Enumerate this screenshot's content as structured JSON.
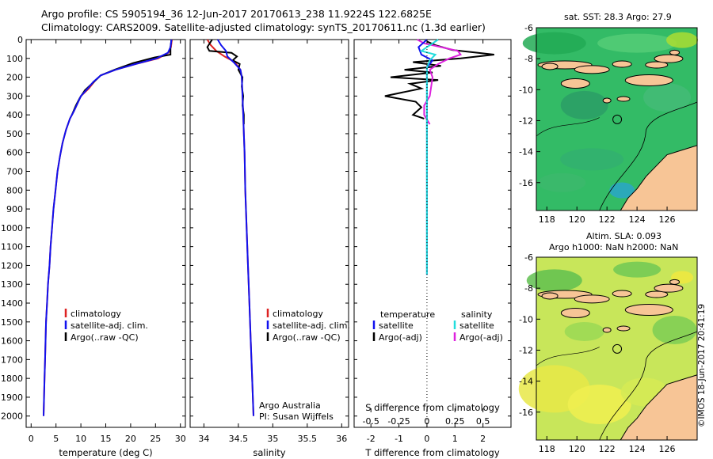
{
  "header": {
    "line1": "Argo profile: CS 5905194_36 12-Jun-2017 20170613_238 11.9224S 122.6825E",
    "line2": "Climatology: CARS2009. Satellite-adjusted climatology: synTS_20170611.nc (1.3d earlier)"
  },
  "chart_data": [
    {
      "type": "line",
      "xlabel": "temperature (deg C)",
      "xlim": [
        -1,
        31
      ],
      "ylim": [
        2060,
        0
      ],
      "xticks": [
        "0",
        "5",
        "10",
        "15",
        "20",
        "25",
        "30"
      ],
      "yticks": [
        "0",
        "100",
        "200",
        "300",
        "400",
        "500",
        "600",
        "700",
        "800",
        "900",
        "1000",
        "1100",
        "1200",
        "1300",
        "1400",
        "1500",
        "1600",
        "1700",
        "1800",
        "1900",
        "2000"
      ],
      "legend": [
        "climatology",
        "satellite-adj. clim.",
        "Argo(..raw -QC)"
      ],
      "series": [
        {
          "name": "climatology",
          "color": "#dd2222",
          "values": [
            [
              28.3,
              0
            ],
            [
              28.1,
              40
            ],
            [
              27.6,
              70
            ],
            [
              25.5,
              100
            ],
            [
              21,
              130
            ],
            [
              17,
              160
            ],
            [
              14,
              190
            ],
            [
              12.8,
              220
            ],
            [
              11.6,
              260
            ],
            [
              10,
              300
            ],
            [
              9.3,
              340
            ],
            [
              8.6,
              380
            ],
            [
              7.8,
              420
            ],
            [
              7,
              480
            ],
            [
              6.3,
              550
            ],
            [
              5.8,
              620
            ],
            [
              5.3,
              700
            ],
            [
              4.9,
              800
            ],
            [
              4.5,
              900
            ],
            [
              4.2,
              1000
            ],
            [
              3.9,
              1100
            ],
            [
              3.7,
              1200
            ],
            [
              3.4,
              1300
            ],
            [
              3.2,
              1400
            ],
            [
              3.0,
              1500
            ],
            [
              2.9,
              1600
            ],
            [
              2.8,
              1700
            ],
            [
              2.7,
              1800
            ],
            [
              2.6,
              1900
            ],
            [
              2.5,
              2000
            ]
          ]
        },
        {
          "name": "Argo(..raw -QC)",
          "color": "#000000",
          "values": [
            [
              28.2,
              0
            ],
            [
              28.0,
              40
            ],
            [
              28.0,
              80
            ],
            [
              24.8,
              95
            ],
            [
              20.5,
              125
            ],
            [
              16.8,
              160
            ],
            [
              14.0,
              190
            ],
            [
              12.2,
              235
            ],
            [
              10.8,
              270
            ],
            [
              9.8,
              310
            ],
            [
              9.0,
              350
            ],
            [
              8.2,
              400
            ]
          ]
        },
        {
          "name": "satellite-adj. clim.",
          "color": "#1111ee",
          "values": [
            [
              28.2,
              0
            ],
            [
              28.0,
              40
            ],
            [
              27.5,
              70
            ],
            [
              25.2,
              100
            ],
            [
              21,
              130
            ],
            [
              17,
              160
            ],
            [
              14,
              190
            ],
            [
              12.5,
              225
            ],
            [
              11.3,
              262
            ],
            [
              10,
              300
            ],
            [
              9.3,
              340
            ],
            [
              8.6,
              380
            ],
            [
              7.8,
              420
            ],
            [
              7,
              480
            ],
            [
              6.3,
              550
            ],
            [
              5.8,
              620
            ],
            [
              5.3,
              700
            ],
            [
              4.9,
              800
            ],
            [
              4.5,
              900
            ],
            [
              4.2,
              1000
            ],
            [
              3.9,
              1100
            ],
            [
              3.7,
              1200
            ],
            [
              3.4,
              1300
            ],
            [
              3.2,
              1400
            ],
            [
              3.0,
              1500
            ],
            [
              2.9,
              1600
            ],
            [
              2.8,
              1700
            ],
            [
              2.7,
              1800
            ],
            [
              2.6,
              1900
            ],
            [
              2.5,
              2000
            ]
          ]
        }
      ]
    },
    {
      "type": "line",
      "xlabel": "salinity",
      "xlim": [
        33.8,
        36.1
      ],
      "ylim": [
        2060,
        0
      ],
      "xticks": [
        "34",
        "34.5",
        "35",
        "35.5",
        "36"
      ],
      "legend": [
        "climatology",
        "satellite-adj. clim.",
        "Argo(..raw -QC)"
      ],
      "series": [
        {
          "name": "climatology",
          "color": "#dd2222",
          "values": [
            [
              34.05,
              0
            ],
            [
              34.1,
              30
            ],
            [
              34.18,
              60
            ],
            [
              34.3,
              90
            ],
            [
              34.45,
              120
            ],
            [
              34.53,
              160
            ],
            [
              34.55,
              200
            ],
            [
              34.56,
              300
            ],
            [
              34.57,
              400
            ],
            [
              34.58,
              500
            ],
            [
              34.59,
              600
            ],
            [
              34.6,
              800
            ],
            [
              34.62,
              1000
            ],
            [
              34.64,
              1200
            ],
            [
              34.66,
              1400
            ],
            [
              34.68,
              1600
            ],
            [
              34.7,
              1800
            ],
            [
              34.72,
              2000
            ]
          ]
        },
        {
          "name": "Argo(..raw -QC)",
          "color": "#000000",
          "values": [
            [
              34.12,
              0
            ],
            [
              34.05,
              40
            ],
            [
              34.08,
              60
            ],
            [
              34.4,
              70
            ],
            [
              34.48,
              90
            ],
            [
              34.42,
              110
            ],
            [
              34.52,
              130
            ],
            [
              34.5,
              160
            ],
            [
              34.56,
              200
            ],
            [
              34.55,
              250
            ],
            [
              34.57,
              300
            ],
            [
              34.56,
              350
            ],
            [
              34.58,
              400
            ],
            [
              34.58,
              450
            ]
          ]
        },
        {
          "name": "satellite-adj. clim.",
          "color": "#1111ee",
          "values": [
            [
              34.2,
              0
            ],
            [
              34.25,
              30
            ],
            [
              34.32,
              60
            ],
            [
              34.34,
              90
            ],
            [
              34.43,
              120
            ],
            [
              34.53,
              160
            ],
            [
              34.55,
              200
            ],
            [
              34.56,
              300
            ],
            [
              34.57,
              400
            ],
            [
              34.58,
              500
            ],
            [
              34.59,
              600
            ],
            [
              34.6,
              800
            ],
            [
              34.62,
              1000
            ],
            [
              34.64,
              1200
            ],
            [
              34.66,
              1400
            ],
            [
              34.68,
              1600
            ],
            [
              34.7,
              1800
            ],
            [
              34.72,
              2000
            ]
          ]
        }
      ],
      "annotation": [
        "Argo Australia",
        "PI: Susan Wijffels"
      ]
    },
    {
      "type": "line",
      "xlabel": "T difference from climatology",
      "x2label": "S difference from climatology",
      "xlim": [
        -2.6,
        3.0
      ],
      "ylim": [
        2060,
        0
      ],
      "xticks": [
        "-2",
        "-1",
        "0",
        "1",
        "2"
      ],
      "x2ticks": [
        "-0.5",
        "-0.25",
        "0",
        "0.25",
        "0.5"
      ],
      "legend_headers": [
        "temperature",
        "salinity"
      ],
      "legend": [
        "satellite",
        "Argo(-adj)",
        "satellite",
        "Argo(-adj)"
      ],
      "series": [
        {
          "name": "temperature Argo(-adj)",
          "color": "#000000",
          "values": [
            [
              0,
              10
            ],
            [
              0.3,
              30
            ],
            [
              0.9,
              55
            ],
            [
              2.4,
              80
            ],
            [
              1.2,
              100
            ],
            [
              -0.5,
              120
            ],
            [
              0.5,
              140
            ],
            [
              -0.8,
              160
            ],
            [
              0.2,
              175
            ],
            [
              -1.3,
              200
            ],
            [
              0.4,
              215
            ],
            [
              -0.6,
              235
            ],
            [
              -0.2,
              260
            ],
            [
              -1.5,
              300
            ],
            [
              -0.4,
              330
            ],
            [
              -0.2,
              360
            ],
            [
              -0.5,
              400
            ],
            [
              -0.1,
              420
            ]
          ]
        },
        {
          "name": "salinity Argo(-adj)",
          "color": "#dd22dd",
          "values": [
            [
              -0.35,
              0
            ],
            [
              -0.1,
              20
            ],
            [
              0.5,
              40
            ],
            [
              1.1,
              60
            ],
            [
              1.2,
              80
            ],
            [
              0.8,
              100
            ],
            [
              0.4,
              130
            ],
            [
              0.1,
              160
            ],
            [
              0.2,
              200
            ],
            [
              0.1,
              300
            ],
            [
              -0.1,
              350
            ],
            [
              -0.1,
              400
            ],
            [
              0.1,
              450
            ]
          ]
        },
        {
          "name": "temperature satellite",
          "color": "#1111ee",
          "values": [
            [
              0,
              0
            ],
            [
              -0.3,
              40
            ],
            [
              -0.2,
              80
            ],
            [
              0.2,
              110
            ],
            [
              0,
              150
            ],
            [
              0,
              250
            ],
            [
              0,
              400
            ],
            [
              0,
              1250
            ]
          ]
        },
        {
          "name": "salinity satellite",
          "color": "#22dddd",
          "values": [
            [
              0.4,
              0
            ],
            [
              -0.2,
              60
            ],
            [
              0.3,
              80
            ],
            [
              0.1,
              110
            ],
            [
              0,
              150
            ],
            [
              0,
              400
            ],
            [
              0,
              1250
            ]
          ]
        }
      ]
    },
    {
      "type": "heatmap",
      "title": "sat. SST: 28.3  Argo: 27.9",
      "xticks": [
        "118",
        "120",
        "122",
        "124",
        "126"
      ],
      "yticks": [
        "-6",
        "-8",
        "-10",
        "-12",
        "-14",
        "-16"
      ],
      "marker": [
        122.68,
        -11.92
      ]
    },
    {
      "type": "heatmap",
      "title": "Altim. SLA: 0.093",
      "subtitle": "Argo h1000: NaN h2000: NaN",
      "xticks": [
        "118",
        "120",
        "122",
        "124",
        "126"
      ],
      "yticks": [
        "-6",
        "-8",
        "-10",
        "-12",
        "-14",
        "-16"
      ],
      "marker": [
        122.68,
        -11.92
      ]
    }
  ],
  "stamp": "©IMOS 18-Jun-2017 20:41:19",
  "colors": {
    "land": "#f7c596",
    "sst_sea": "#33bb66",
    "sla_sea": "#c8e65a"
  }
}
